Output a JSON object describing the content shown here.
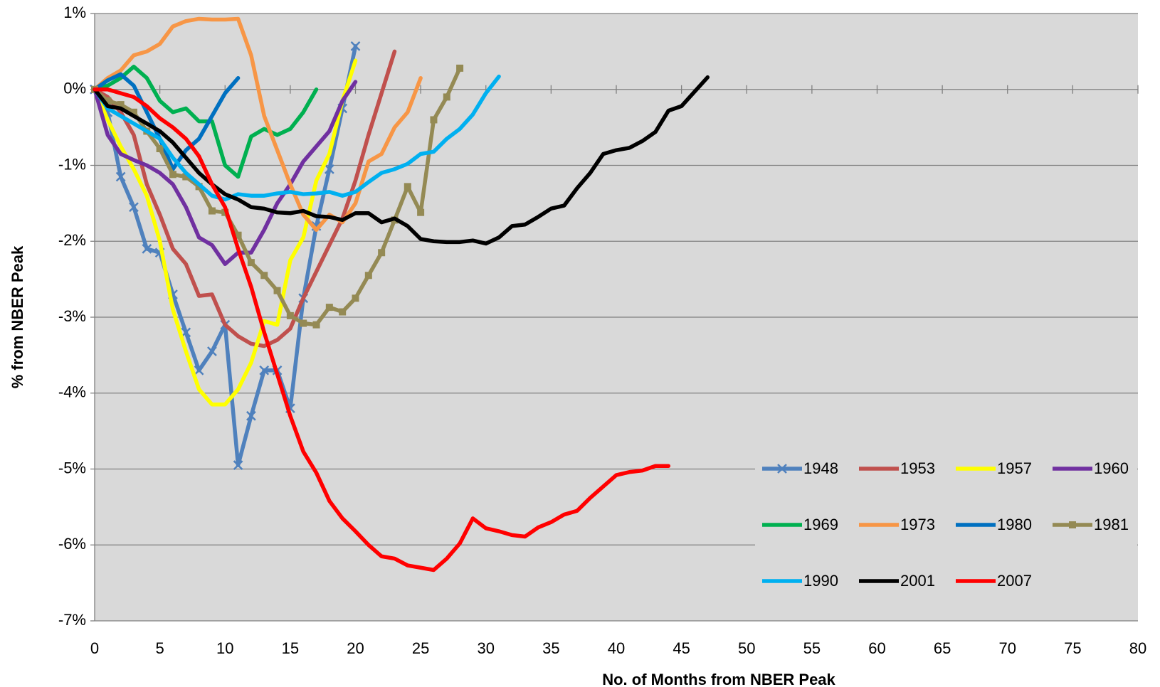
{
  "chart_data": {
    "type": "line",
    "xlabel": "No. of Months from NBER Peak",
    "ylabel": "% from NBER Peak",
    "xlim": [
      0,
      80
    ],
    "xticks": [
      0,
      5,
      10,
      15,
      20,
      25,
      30,
      35,
      40,
      45,
      50,
      55,
      60,
      65,
      70,
      75,
      80
    ],
    "ylim": [
      -7,
      1
    ],
    "yticks": [
      {
        "value": -7,
        "label": "-7%"
      },
      {
        "value": -6,
        "label": "-6%"
      },
      {
        "value": -5,
        "label": "-5%"
      },
      {
        "value": -4,
        "label": "-4%"
      },
      {
        "value": -3,
        "label": "-3%"
      },
      {
        "value": -2,
        "label": "-2%"
      },
      {
        "value": -1,
        "label": "-1%"
      },
      {
        "value": 0,
        "label": "0%"
      },
      {
        "value": 1,
        "label": "1%"
      }
    ],
    "grid": true,
    "legend": "lower right",
    "x": [
      0,
      1,
      2,
      3,
      4,
      5,
      6,
      7,
      8,
      9,
      10,
      11,
      12,
      13,
      14,
      15,
      16,
      17,
      18,
      19,
      20,
      21,
      22,
      23,
      24,
      25,
      26,
      27,
      28,
      29,
      30,
      31,
      32,
      33,
      34,
      35,
      36,
      37,
      38,
      39,
      40,
      41,
      42,
      43,
      44,
      45,
      46,
      47
    ],
    "series": [
      {
        "name": "1948",
        "color": "#4F81BD",
        "marker": "x",
        "values": [
          0,
          -0.3,
          -1.15,
          -1.55,
          -2.1,
          -2.15,
          -2.7,
          -3.2,
          -3.7,
          -3.45,
          -3.1,
          -4.95,
          -4.3,
          -3.7,
          -3.7,
          -4.2,
          -2.75,
          -1.8,
          -1.05,
          -0.25,
          0.57,
          null,
          null,
          null,
          null,
          null,
          null,
          null,
          null,
          null,
          null,
          null,
          null,
          null,
          null,
          null,
          null,
          null,
          null,
          null,
          null,
          null,
          null,
          null,
          null,
          null,
          null,
          null
        ]
      },
      {
        "name": "1953",
        "color": "#C0504D",
        "values": [
          0,
          -0.1,
          -0.3,
          -0.6,
          -1.25,
          -1.65,
          -2.1,
          -2.3,
          -2.72,
          -2.7,
          -3.1,
          -3.25,
          -3.35,
          -3.38,
          -3.3,
          -3.15,
          -2.75,
          -2.4,
          -2.05,
          -1.7,
          -1.2,
          -0.6,
          -0.05,
          0.5,
          null,
          null,
          null,
          null,
          null,
          null,
          null,
          null,
          null,
          null,
          null,
          null,
          null,
          null,
          null,
          null,
          null,
          null,
          null,
          null,
          null,
          null,
          null,
          null
        ]
      },
      {
        "name": "1957",
        "color": "#FFFF00",
        "values": [
          0,
          -0.4,
          -0.75,
          -1.05,
          -1.4,
          -2,
          -2.9,
          -3.45,
          -3.95,
          -4.15,
          -4.15,
          -3.95,
          -3.6,
          -3.05,
          -3.1,
          -2.25,
          -1.95,
          -1.2,
          -0.85,
          -0.15,
          0.38,
          null,
          null,
          null,
          null,
          null,
          null,
          null,
          null,
          null,
          null,
          null,
          null,
          null,
          null,
          null,
          null,
          null,
          null,
          null,
          null,
          null,
          null,
          null,
          null,
          null,
          null,
          null
        ]
      },
      {
        "name": "1960",
        "color": "#7030A0",
        "values": [
          0,
          -0.6,
          -0.85,
          -0.93,
          -1,
          -1.1,
          -1.25,
          -1.55,
          -1.95,
          -2.05,
          -2.3,
          -2.15,
          -2.15,
          -1.85,
          -1.5,
          -1.25,
          -0.95,
          -0.75,
          -0.55,
          -0.15,
          0.1,
          null,
          null,
          null,
          null,
          null,
          null,
          null,
          null,
          null,
          null,
          null,
          null,
          null,
          null,
          null,
          null,
          null,
          null,
          null,
          null,
          null,
          null,
          null,
          null,
          null,
          null,
          null
        ]
      },
      {
        "name": "1969",
        "color": "#00B050",
        "values": [
          0,
          0.05,
          0.15,
          0.3,
          0.15,
          -0.15,
          -0.3,
          -0.25,
          -0.42,
          -0.42,
          -1,
          -1.15,
          -0.62,
          -0.52,
          -0.6,
          -0.52,
          -0.3,
          0,
          null,
          null,
          null,
          null,
          null,
          null,
          null,
          null,
          null,
          null,
          null,
          null,
          null,
          null,
          null,
          null,
          null,
          null,
          null,
          null,
          null,
          null,
          null,
          null,
          null,
          null,
          null,
          null,
          null,
          null
        ]
      },
      {
        "name": "1973",
        "color": "#F79646",
        "values": [
          0,
          0.15,
          0.25,
          0.45,
          0.5,
          0.6,
          0.83,
          0.9,
          0.93,
          0.92,
          0.92,
          0.93,
          0.45,
          -0.35,
          -0.8,
          -1.25,
          -1.65,
          -1.85,
          -1.65,
          -1.75,
          -1.5,
          -0.95,
          -0.85,
          -0.5,
          -0.3,
          0.15,
          null,
          null,
          null,
          null,
          null,
          null,
          null,
          null,
          null,
          null,
          null,
          null,
          null,
          null,
          null,
          null,
          null,
          null,
          null,
          null,
          null,
          null
        ]
      },
      {
        "name": "1980",
        "color": "#0070C0",
        "values": [
          0,
          0.12,
          0.2,
          0.05,
          -0.3,
          -0.65,
          -1.05,
          -0.8,
          -0.65,
          -0.35,
          -0.05,
          0.15,
          null,
          null,
          null,
          null,
          null,
          null,
          null,
          null,
          null,
          null,
          null,
          null,
          null,
          null,
          null,
          null,
          null,
          null,
          null,
          null,
          null,
          null,
          null,
          null,
          null,
          null,
          null,
          null,
          null,
          null,
          null,
          null,
          null,
          null,
          null,
          null
        ]
      },
      {
        "name": "1981",
        "color": "#948A54",
        "marker": "square",
        "values": [
          0,
          -0.15,
          -0.2,
          -0.3,
          -0.55,
          -0.78,
          -1.12,
          -1.15,
          -1.28,
          -1.6,
          -1.62,
          -1.92,
          -2.28,
          -2.45,
          -2.65,
          -2.98,
          -3.08,
          -3.1,
          -2.87,
          -2.93,
          -2.75,
          -2.45,
          -2.15,
          -1.72,
          -1.28,
          -1.62,
          -0.4,
          -0.1,
          0.28,
          null,
          null,
          null,
          null,
          null,
          null,
          null,
          null,
          null,
          null,
          null,
          null,
          null,
          null,
          null,
          null,
          null,
          null,
          null
        ]
      },
      {
        "name": "1990",
        "color": "#00B0F0",
        "values": [
          0,
          -0.25,
          -0.35,
          -0.45,
          -0.55,
          -0.65,
          -0.9,
          -1.1,
          -1.25,
          -1.4,
          -1.45,
          -1.38,
          -1.4,
          -1.4,
          -1.37,
          -1.35,
          -1.38,
          -1.37,
          -1.35,
          -1.4,
          -1.35,
          -1.22,
          -1.1,
          -1.05,
          -0.98,
          -0.85,
          -0.82,
          -0.65,
          -0.52,
          -0.33,
          -0.05,
          0.17,
          null,
          null,
          null,
          null,
          null,
          null,
          null,
          null,
          null,
          null,
          null,
          null,
          null,
          null,
          null,
          null
        ]
      },
      {
        "name": "2001",
        "color": "#000000",
        "values": [
          0,
          -0.22,
          -0.25,
          -0.35,
          -0.45,
          -0.55,
          -0.7,
          -0.9,
          -1.1,
          -1.25,
          -1.38,
          -1.45,
          -1.55,
          -1.57,
          -1.62,
          -1.63,
          -1.6,
          -1.67,
          -1.68,
          -1.72,
          -1.63,
          -1.63,
          -1.75,
          -1.7,
          -1.8,
          -1.97,
          -2,
          -2.01,
          -2.01,
          -1.99,
          -2.03,
          -1.95,
          -1.8,
          -1.78,
          -1.68,
          -1.57,
          -1.53,
          -1.3,
          -1.1,
          -0.85,
          -0.8,
          -0.77,
          -0.68,
          -0.56,
          -0.28,
          -0.22,
          -0.03,
          0.16
        ]
      },
      {
        "name": "2007",
        "color": "#FF0000",
        "values": [
          0,
          0,
          -0.05,
          -0.1,
          -0.22,
          -0.38,
          -0.5,
          -0.65,
          -0.88,
          -1.25,
          -1.55,
          -2.1,
          -2.6,
          -3.2,
          -3.75,
          -4.3,
          -4.77,
          -5.05,
          -5.42,
          -5.65,
          -5.82,
          -6,
          -6.15,
          -6.18,
          -6.27,
          -6.3,
          -6.33,
          -6.18,
          -5.98,
          -5.65,
          -5.78,
          -5.82,
          -5.87,
          -5.89,
          -5.77,
          -5.7,
          -5.6,
          -5.55,
          -5.38,
          -5.23,
          -5.08,
          -5.04,
          -5.02,
          -4.96,
          -4.96,
          null,
          null,
          null
        ]
      }
    ]
  }
}
